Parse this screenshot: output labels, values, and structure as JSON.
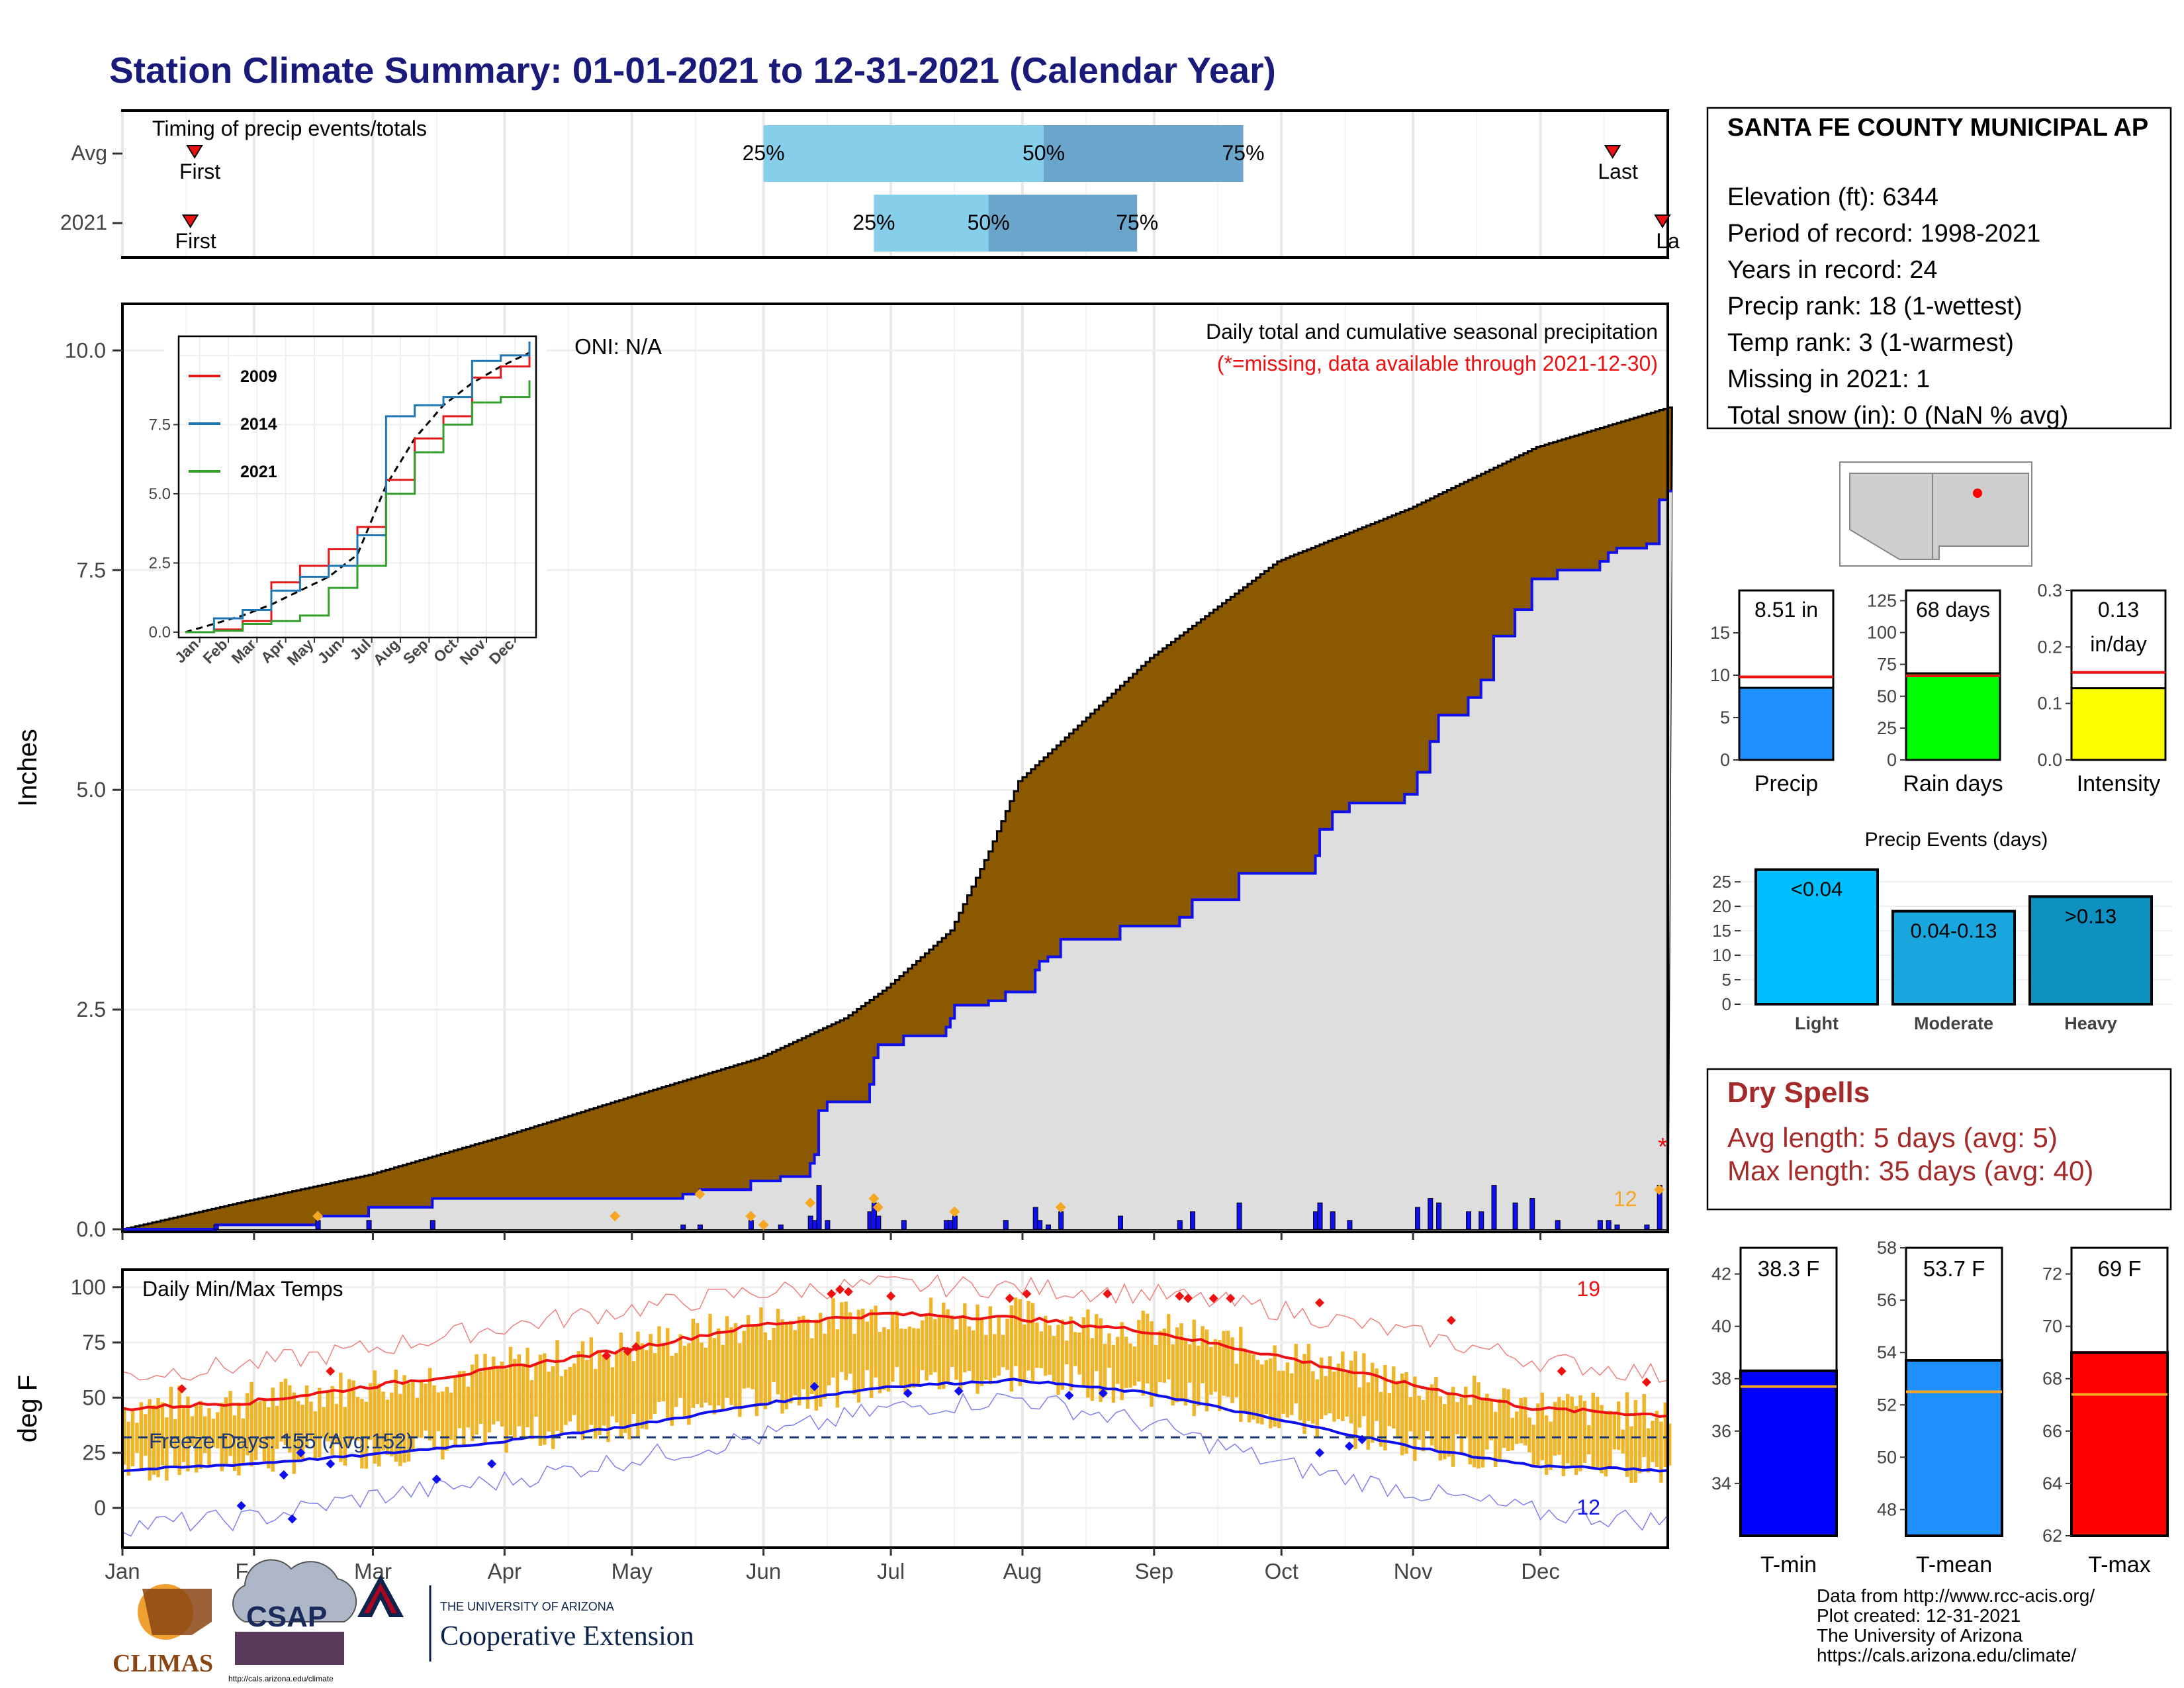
{
  "title": "Station Climate Summary: 01-01-2021 to 12-31-2021 (Calendar Year)",
  "colors": {
    "title": "#1a1a7a",
    "brown": "#8b5a00",
    "green": "#0a8a0a",
    "obs_fill": "#dedede",
    "blue_line": "#1010ee",
    "orange": "#f5a623",
    "q_light": "#87ceeb",
    "q_dark": "#6aa5cc",
    "temp_bar": "#f0b429",
    "red": "#ee1111",
    "dry_red": "#a52a2a"
  },
  "months": [
    "Jan",
    "Feb",
    "Mar",
    "Apr",
    "May",
    "Jun",
    "Jul",
    "Aug",
    "Sep",
    "Oct",
    "Nov",
    "Dec"
  ],
  "timing": {
    "label": "Timing of precip events/totals",
    "rows": [
      {
        "name": "Avg",
        "first_doy": 18,
        "last_doy": 352,
        "q25": 152,
        "q50": 218,
        "q75": 265,
        "first_label": "First",
        "last_label": "Last",
        "q25_label": "25%",
        "q50_label": "50%",
        "q75_label": "75%"
      },
      {
        "name": "2021",
        "first_doy": 17,
        "last_doy": 366,
        "q25": 178,
        "q50": 205,
        "q75": 240,
        "first_label": "First",
        "last_label": "La",
        "q25_label": "25%",
        "q50_label": "50%",
        "q75_label": "75%"
      }
    ]
  },
  "precip_panel": {
    "ylabel": "Inches",
    "yticks": [
      "0.0",
      "2.5",
      "5.0",
      "7.5",
      "10.0"
    ],
    "ylim": [
      0,
      10.5
    ],
    "title": "Daily total and cumulative seasonal precipitation",
    "missing_note": "(*=missing, data available through 2021-12-30)",
    "oni": "ONI: N/A",
    "count_label": "12",
    "missing_marker": "*",
    "avg_cumulative": [
      [
        1,
        0
      ],
      [
        31,
        0.33
      ],
      [
        59,
        0.62
      ],
      [
        90,
        1.05
      ],
      [
        120,
        1.5
      ],
      [
        151,
        1.95
      ],
      [
        171,
        2.4
      ],
      [
        181,
        2.75
      ],
      [
        196,
        3.4
      ],
      [
        205,
        4.3
      ],
      [
        212,
        5.1
      ],
      [
        243,
        6.5
      ],
      [
        273,
        7.6
      ],
      [
        304,
        8.2
      ],
      [
        334,
        8.9
      ],
      [
        365,
        9.35
      ]
    ],
    "obs_cumulative": [
      [
        1,
        0
      ],
      [
        22,
        0
      ],
      [
        23,
        0.05
      ],
      [
        40,
        0.05
      ],
      [
        47,
        0.15
      ],
      [
        58,
        0.15
      ],
      [
        59,
        0.25
      ],
      [
        74,
        0.35
      ],
      [
        130,
        0.35
      ],
      [
        133,
        0.4
      ],
      [
        135,
        0.4
      ],
      [
        137,
        0.45
      ],
      [
        146,
        0.45
      ],
      [
        149,
        0.55
      ],
      [
        152,
        0.55
      ],
      [
        156,
        0.6
      ],
      [
        162,
        0.6
      ],
      [
        163,
        0.75
      ],
      [
        164,
        0.85
      ],
      [
        165,
        1.35
      ],
      [
        167,
        1.45
      ],
      [
        177,
        1.65
      ],
      [
        178,
        1.95
      ],
      [
        179,
        2.1
      ],
      [
        185,
        2.2
      ],
      [
        195,
        2.3
      ],
      [
        196,
        2.4
      ],
      [
        197,
        2.55
      ],
      [
        205,
        2.6
      ],
      [
        209,
        2.7
      ],
      [
        216,
        2.95
      ],
      [
        217,
        3.05
      ],
      [
        219,
        3.1
      ],
      [
        222,
        3.3
      ],
      [
        236,
        3.45
      ],
      [
        250,
        3.55
      ],
      [
        253,
        3.75
      ],
      [
        264,
        4.05
      ],
      [
        282,
        4.25
      ],
      [
        283,
        4.55
      ],
      [
        286,
        4.75
      ],
      [
        290,
        4.85
      ],
      [
        303,
        4.95
      ],
      [
        306,
        5.2
      ],
      [
        309,
        5.55
      ],
      [
        311,
        5.85
      ],
      [
        318,
        6.05
      ],
      [
        321,
        6.25
      ],
      [
        324,
        6.75
      ],
      [
        329,
        7.05
      ],
      [
        333,
        7.4
      ],
      [
        339,
        7.5
      ],
      [
        349,
        7.6
      ],
      [
        351,
        7.7
      ],
      [
        353,
        7.75
      ],
      [
        360,
        7.8
      ],
      [
        363,
        8.3
      ],
      [
        365,
        8.4
      ]
    ],
    "daily_bars": [
      [
        23,
        0.05
      ],
      [
        47,
        0.1
      ],
      [
        59,
        0.1
      ],
      [
        74,
        0.1
      ],
      [
        133,
        0.05
      ],
      [
        137,
        0.05
      ],
      [
        149,
        0.1
      ],
      [
        156,
        0.05
      ],
      [
        163,
        0.15
      ],
      [
        164,
        0.1
      ],
      [
        165,
        0.5
      ],
      [
        167,
        0.1
      ],
      [
        177,
        0.2
      ],
      [
        178,
        0.3
      ],
      [
        179,
        0.15
      ],
      [
        185,
        0.1
      ],
      [
        195,
        0.1
      ],
      [
        196,
        0.1
      ],
      [
        197,
        0.15
      ],
      [
        209,
        0.1
      ],
      [
        216,
        0.25
      ],
      [
        217,
        0.1
      ],
      [
        219,
        0.05
      ],
      [
        222,
        0.2
      ],
      [
        236,
        0.15
      ],
      [
        250,
        0.1
      ],
      [
        253,
        0.2
      ],
      [
        264,
        0.3
      ],
      [
        282,
        0.2
      ],
      [
        283,
        0.3
      ],
      [
        286,
        0.2
      ],
      [
        290,
        0.1
      ],
      [
        306,
        0.25
      ],
      [
        309,
        0.35
      ],
      [
        311,
        0.3
      ],
      [
        318,
        0.2
      ],
      [
        321,
        0.2
      ],
      [
        324,
        0.5
      ],
      [
        329,
        0.3
      ],
      [
        333,
        0.35
      ],
      [
        339,
        0.1
      ],
      [
        349,
        0.1
      ],
      [
        351,
        0.1
      ],
      [
        353,
        0.05
      ],
      [
        360,
        0.05
      ],
      [
        363,
        0.5
      ]
    ],
    "orange_markers": [
      [
        47,
        0.15
      ],
      [
        117,
        0.15
      ],
      [
        137,
        0.4
      ],
      [
        149,
        0.15
      ],
      [
        152,
        0.05
      ],
      [
        163,
        0.3
      ],
      [
        178,
        0.35
      ],
      [
        179,
        0.25
      ],
      [
        197,
        0.2
      ],
      [
        222,
        0.25
      ],
      [
        363,
        0.45
      ]
    ]
  },
  "inset": {
    "legend": [
      "2009",
      "2014",
      "2021"
    ],
    "legend_colors": [
      "#e31a1c",
      "#1f78b4",
      "#33a02c"
    ],
    "yticks": [
      "0.0",
      "2.5",
      "5.0",
      "7.5"
    ],
    "ylim": [
      0,
      10.5
    ],
    "months": [
      "Jan",
      "Feb",
      "Mar",
      "Apr",
      "May",
      "Jun",
      "Jul",
      "Aug",
      "Sep",
      "Oct",
      "Nov",
      "Dec"
    ],
    "series": {
      "avg": [
        [
          0,
          0
        ],
        [
          1,
          0.3
        ],
        [
          2,
          0.6
        ],
        [
          3,
          1.0
        ],
        [
          4,
          1.5
        ],
        [
          5,
          2.0
        ],
        [
          6,
          2.8
        ],
        [
          7,
          5.3
        ],
        [
          8,
          7.0
        ],
        [
          9,
          8.2
        ],
        [
          10,
          9.0
        ],
        [
          11,
          9.6
        ],
        [
          12,
          10.1
        ]
      ],
      "2009": [
        [
          0,
          0
        ],
        [
          1,
          0.1
        ],
        [
          2,
          0.4
        ],
        [
          3,
          1.8
        ],
        [
          4,
          2.4
        ],
        [
          5,
          3.0
        ],
        [
          6,
          3.8
        ],
        [
          7,
          5.5
        ],
        [
          8,
          7.0
        ],
        [
          9,
          7.8
        ],
        [
          10,
          9.2
        ],
        [
          11,
          9.6
        ],
        [
          12,
          10.3
        ]
      ],
      "2014": [
        [
          0,
          0
        ],
        [
          1,
          0.5
        ],
        [
          2,
          0.8
        ],
        [
          3,
          1.5
        ],
        [
          4,
          2.0
        ],
        [
          5,
          2.4
        ],
        [
          6,
          3.5
        ],
        [
          7,
          7.8
        ],
        [
          8,
          8.2
        ],
        [
          9,
          8.5
        ],
        [
          10,
          9.8
        ],
        [
          11,
          10.0
        ],
        [
          12,
          10.5
        ]
      ],
      "2021": [
        [
          0,
          0
        ],
        [
          1,
          0.05
        ],
        [
          2,
          0.3
        ],
        [
          3,
          0.4
        ],
        [
          4,
          0.6
        ],
        [
          5,
          1.6
        ],
        [
          6,
          2.4
        ],
        [
          7,
          5.0
        ],
        [
          8,
          6.5
        ],
        [
          9,
          7.5
        ],
        [
          10,
          8.3
        ],
        [
          11,
          8.5
        ],
        [
          12,
          9.1
        ]
      ]
    }
  },
  "station": {
    "name": "SANTA FE COUNTY MUNICIPAL AP",
    "elevation": "Elevation (ft): 6344",
    "period": "Period of record: 1998-2021",
    "years": "Years in record: 24",
    "precip_rank": "Precip rank: 18 (1-wettest)",
    "temp_rank": "Temp rank: 3 (1-warmest)",
    "missing": "Missing in 2021: 1",
    "snow": "Total snow (in): 0 (NaN % avg)"
  },
  "mini_bars": [
    {
      "label": "Precip",
      "value": 8.51,
      "value_label": "8.51 in",
      "value_label2": "",
      "avg": 9.8,
      "ylim": [
        0,
        20
      ],
      "yticks": [
        0,
        5,
        10,
        15
      ],
      "color": "#1e90ff"
    },
    {
      "label": "Rain days",
      "value": 68,
      "value_label": "68 days",
      "value_label2": "",
      "avg": 66,
      "ylim": [
        0,
        133
      ],
      "yticks": [
        0,
        25,
        50,
        75,
        100,
        125
      ],
      "color": "#00ff00"
    },
    {
      "label": "Intensity",
      "value": 0.127,
      "value_label": "0.13",
      "value_label2": "in/day",
      "avg": 0.155,
      "ylim": [
        0,
        0.3
      ],
      "yticks": [
        "0.0",
        "0.1",
        "0.2",
        "0.3"
      ],
      "color": "#ffff00"
    }
  ],
  "events": {
    "title": "Precip Events (days)",
    "categories": [
      "Light",
      "Moderate",
      "Heavy"
    ],
    "values": [
      27.5,
      19,
      22
    ],
    "labels": [
      "<0.04",
      "0.04-0.13",
      ">0.13"
    ],
    "colors": [
      "#00bfff",
      "#1aa7df",
      "#0e90c0"
    ],
    "yticks": [
      0,
      5,
      10,
      15,
      20,
      25
    ],
    "ylim": [
      0,
      28
    ]
  },
  "dry_spells": {
    "title": "Dry Spells",
    "avg": "Avg length: 5 days (avg: 5)",
    "max": "Max length: 35 days (avg: 40)"
  },
  "temp_panel": {
    "label": "Daily Min/Max Temps",
    "ylabel": "deg F",
    "yticks": [
      0,
      25,
      50,
      75,
      100
    ],
    "ylim": [
      -18,
      108
    ],
    "freeze": "Freeze Days: 155 (Avg:152)",
    "count_max": "19",
    "count_min": "12",
    "norm_max": [
      [
        1,
        45
      ],
      [
        31,
        48
      ],
      [
        59,
        55
      ],
      [
        90,
        63
      ],
      [
        120,
        72
      ],
      [
        151,
        83
      ],
      [
        181,
        88
      ],
      [
        212,
        86
      ],
      [
        243,
        80
      ],
      [
        273,
        69
      ],
      [
        304,
        56
      ],
      [
        334,
        45
      ],
      [
        365,
        42
      ]
    ],
    "norm_min": [
      [
        1,
        17
      ],
      [
        31,
        20
      ],
      [
        59,
        24
      ],
      [
        90,
        30
      ],
      [
        120,
        37
      ],
      [
        151,
        47
      ],
      [
        181,
        55
      ],
      [
        212,
        58
      ],
      [
        243,
        52
      ],
      [
        273,
        40
      ],
      [
        304,
        28
      ],
      [
        334,
        19
      ],
      [
        365,
        17
      ]
    ],
    "rec_max": [
      [
        1,
        60
      ],
      [
        31,
        65
      ],
      [
        59,
        72
      ],
      [
        90,
        82
      ],
      [
        120,
        90
      ],
      [
        151,
        98
      ],
      [
        181,
        101
      ],
      [
        212,
        100
      ],
      [
        243,
        97
      ],
      [
        273,
        90
      ],
      [
        304,
        79
      ],
      [
        334,
        67
      ],
      [
        365,
        60
      ]
    ],
    "rec_min": [
      [
        1,
        -8
      ],
      [
        31,
        -5
      ],
      [
        59,
        5
      ],
      [
        90,
        12
      ],
      [
        120,
        22
      ],
      [
        151,
        32
      ],
      [
        181,
        45
      ],
      [
        212,
        50
      ],
      [
        243,
        38
      ],
      [
        273,
        20
      ],
      [
        304,
        8
      ],
      [
        334,
        -2
      ],
      [
        365,
        -6
      ]
    ]
  },
  "temp_mini": [
    {
      "label": "T-min",
      "value": 38.3,
      "value_label": "38.3 F",
      "avg": 37.7,
      "ylim": [
        32,
        43
      ],
      "yticks": [
        34,
        36,
        38,
        40,
        42
      ],
      "color": "#0000ff"
    },
    {
      "label": "T-mean",
      "value": 53.7,
      "value_label": "53.7 F",
      "avg": 52.5,
      "ylim": [
        47,
        58
      ],
      "yticks": [
        48,
        50,
        52,
        54,
        56,
        58
      ],
      "color": "#1e90ff"
    },
    {
      "label": "T-max",
      "value": 69,
      "value_label": "69 F",
      "avg": 67.4,
      "ylim": [
        62,
        73
      ],
      "yticks": [
        62,
        64,
        66,
        68,
        70,
        72
      ],
      "color": "#ff0000"
    }
  ],
  "footer": {
    "line1": "Data from http://www.rcc-acis.org/",
    "line2": "Plot created: 12-31-2021",
    "line3": "The University of Arizona",
    "line4": "https://cals.arizona.edu/climate/",
    "climas": "CLIMAS",
    "csap": "CSAP",
    "csap_url": "http://cals.arizona.edu/climate",
    "ua_small": "THE UNIVERSITY OF ARIZONA",
    "ua_big": "Cooperative Extension"
  }
}
